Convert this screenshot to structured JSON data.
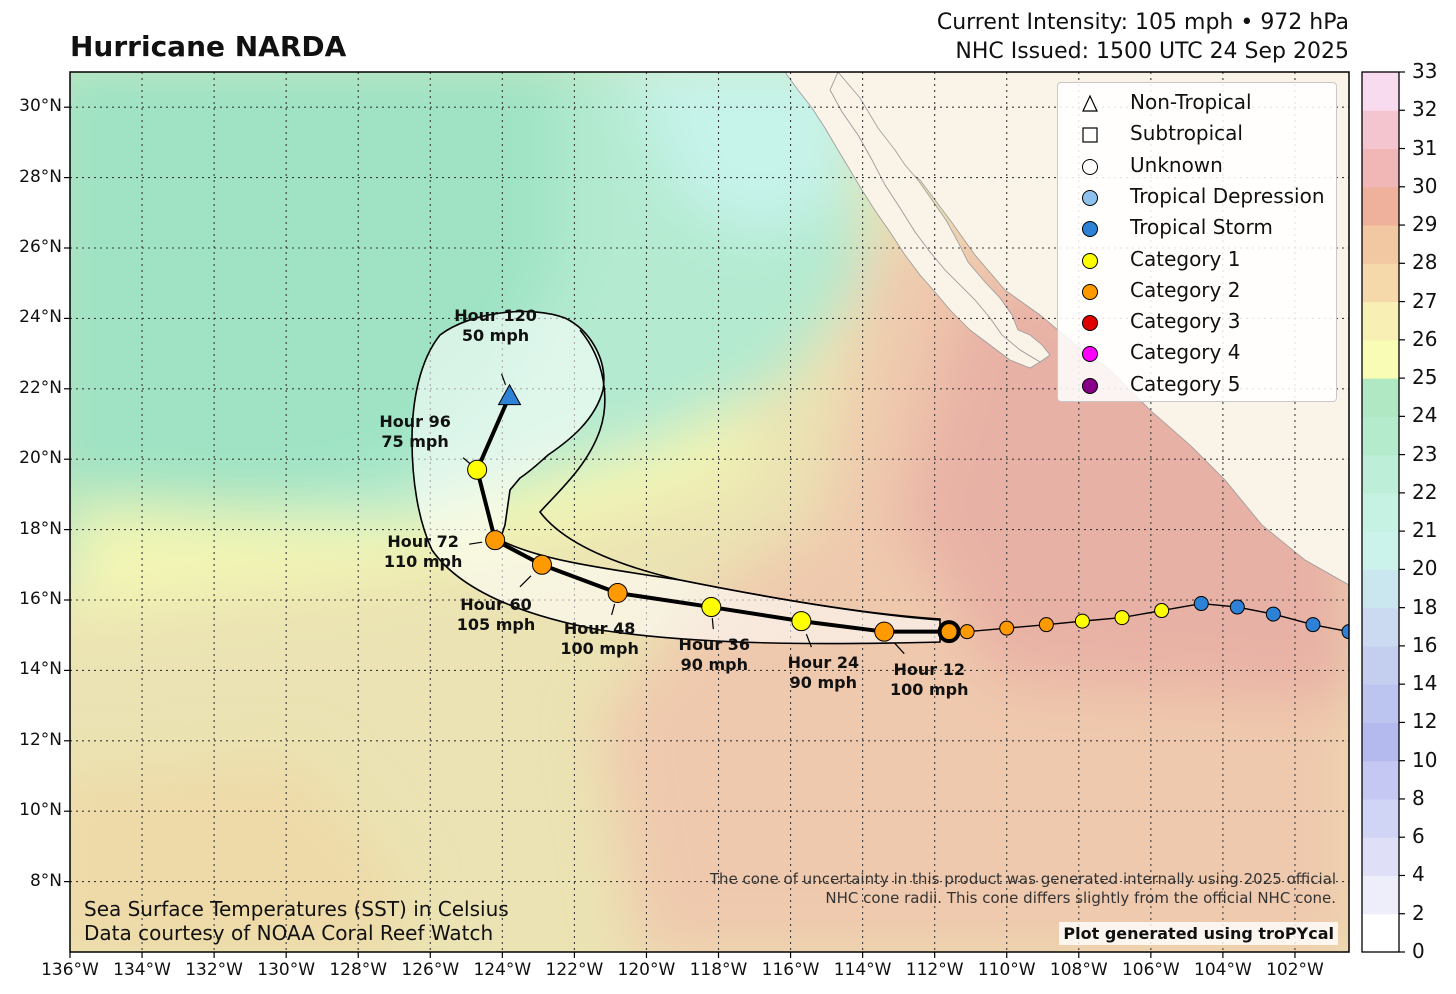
{
  "title": "Hurricane NARDA",
  "header": {
    "intensity_line": "Current Intensity: 105 mph • 972 hPa",
    "issued_line": "NHC Issued: 1500 UTC 24 Sep 2025"
  },
  "map": {
    "lon_range": [
      -136,
      -100.5
    ],
    "lat_range": [
      6,
      31
    ],
    "grid_lons": [
      -136,
      -134,
      -132,
      -130,
      -128,
      -126,
      -124,
      -122,
      -120,
      -118,
      -116,
      -114,
      -112,
      -110,
      -108,
      -106,
      -104,
      -102
    ],
    "grid_lats": [
      8,
      10,
      12,
      14,
      16,
      18,
      20,
      22,
      24,
      26,
      28,
      30
    ],
    "lon_labels": [
      "136°W",
      "134°W",
      "132°W",
      "130°W",
      "128°W",
      "126°W",
      "124°W",
      "122°W",
      "120°W",
      "118°W",
      "116°W",
      "114°W",
      "112°W",
      "110°W",
      "108°W",
      "106°W",
      "104°W",
      "102°W"
    ],
    "lat_labels": [
      "8°N",
      "10°N",
      "12°N",
      "14°N",
      "16°N",
      "18°N",
      "20°N",
      "22°N",
      "24°N",
      "26°N",
      "28°N",
      "30°N"
    ]
  },
  "colorbar": {
    "labels": [
      "0",
      "2",
      "4",
      "6",
      "8",
      "10",
      "12",
      "14",
      "16",
      "18",
      "20",
      "21",
      "22",
      "23",
      "24",
      "25",
      "26",
      "27",
      "28",
      "29",
      "30",
      "31",
      "32",
      "33"
    ],
    "colors": [
      "#ffffff",
      "#eeeefb",
      "#dfe0f7",
      "#d0d4f5",
      "#c4c8f2",
      "#b4b9ee",
      "#bcc4f0",
      "#c4ceef",
      "#cbdaf0",
      "#cae6ef",
      "#cbf3ec",
      "#c5f2e3",
      "#bdefd8",
      "#b5ebcd",
      "#b0e8c3",
      "#f8fcb5",
      "#f8efb4",
      "#f5d9ab",
      "#f2c8a2",
      "#efb09c",
      "#f1b6b6",
      "#f4c5cf",
      "#f8dbef"
    ]
  },
  "legend": {
    "items": [
      {
        "label": "Non-Tropical",
        "symbol": "triangle",
        "color": "#ffffff"
      },
      {
        "label": "Subtropical",
        "symbol": "square",
        "color": "#ffffff"
      },
      {
        "label": "Unknown",
        "symbol": "circle",
        "color": "#ffffff"
      },
      {
        "label": "Tropical Depression",
        "symbol": "circle",
        "color": "#8ec2ee"
      },
      {
        "label": "Tropical Storm",
        "symbol": "circle",
        "color": "#2d82d8"
      },
      {
        "label": "Category 1",
        "symbol": "circle",
        "color": "#ffff00"
      },
      {
        "label": "Category 2",
        "symbol": "circle",
        "color": "#ff9900"
      },
      {
        "label": "Category 3",
        "symbol": "circle",
        "color": "#e00000"
      },
      {
        "label": "Category 4",
        "symbol": "circle",
        "color": "#ff00ff"
      },
      {
        "label": "Category 5",
        "symbol": "circle",
        "color": "#880088"
      }
    ]
  },
  "storm": {
    "current_position": {
      "lon": -111.6,
      "lat": 15.1
    },
    "past_track": [
      {
        "lon": -100.5,
        "lat": 15.1,
        "category": "Tropical Storm"
      },
      {
        "lon": -101.5,
        "lat": 15.3,
        "category": "Tropical Storm"
      },
      {
        "lon": -102.6,
        "lat": 15.6,
        "category": "Tropical Storm"
      },
      {
        "lon": -103.6,
        "lat": 15.8,
        "category": "Tropical Storm"
      },
      {
        "lon": -104.6,
        "lat": 15.9,
        "category": "Tropical Storm"
      },
      {
        "lon": -105.7,
        "lat": 15.7,
        "category": "Category 1"
      },
      {
        "lon": -106.8,
        "lat": 15.5,
        "category": "Category 1"
      },
      {
        "lon": -107.9,
        "lat": 15.4,
        "category": "Category 1"
      },
      {
        "lon": -108.9,
        "lat": 15.3,
        "category": "Category 2"
      },
      {
        "lon": -110.0,
        "lat": 15.2,
        "category": "Category 2"
      },
      {
        "lon": -111.1,
        "lat": 15.1,
        "category": "Category 2"
      }
    ],
    "forecast": [
      {
        "hour": 12,
        "label_hour": "Hour 12",
        "label_wind": "100 mph",
        "lon": -113.4,
        "lat": 15.1,
        "category": "Category 2",
        "labeled": true
      },
      {
        "hour": 24,
        "label_hour": "Hour 24",
        "label_wind": "90 mph",
        "lon": -115.7,
        "lat": 15.4,
        "category": "Category 1",
        "labeled": true
      },
      {
        "hour": 36,
        "label_hour": "Hour 36",
        "label_wind": "90 mph",
        "lon": -118.2,
        "lat": 15.8,
        "category": "Category 1",
        "labeled": true
      },
      {
        "hour": 48,
        "label_hour": "Hour 48",
        "label_wind": "100 mph",
        "lon": -120.8,
        "lat": 16.2,
        "category": "Category 2",
        "labeled": true
      },
      {
        "hour": 60,
        "label_hour": "Hour 60",
        "label_wind": "105 mph",
        "lon": -122.9,
        "lat": 17.0,
        "category": "Category 2",
        "labeled": true
      },
      {
        "hour": 72,
        "label_hour": "Hour 72",
        "label_wind": "110 mph",
        "lon": -124.2,
        "lat": 17.7,
        "category": "Category 2",
        "labeled": true
      },
      {
        "hour": 96,
        "label_hour": "Hour 96",
        "label_wind": "75 mph",
        "lon": -124.7,
        "lat": 19.7,
        "category": "Category 1",
        "labeled": true
      },
      {
        "hour": 120,
        "label_hour": "Hour 120",
        "label_wind": "50 mph",
        "lon": -123.8,
        "lat": 21.8,
        "category": "Non-Tropical",
        "symbol": "triangle",
        "fill": "#2d82d8",
        "labeled": true
      }
    ]
  },
  "notes": {
    "sst_line1": "Sea Surface Temperatures (SST) in Celsius",
    "sst_line2": "Data courtesy of NOAA Coral Reef Watch",
    "cone_line1": "The cone of uncertainty in this product was generated internally using 2025 official",
    "cone_line2": "NHC cone radii. This cone differs slightly from the official NHC cone.",
    "credit": "Plot generated using troPYcal"
  }
}
